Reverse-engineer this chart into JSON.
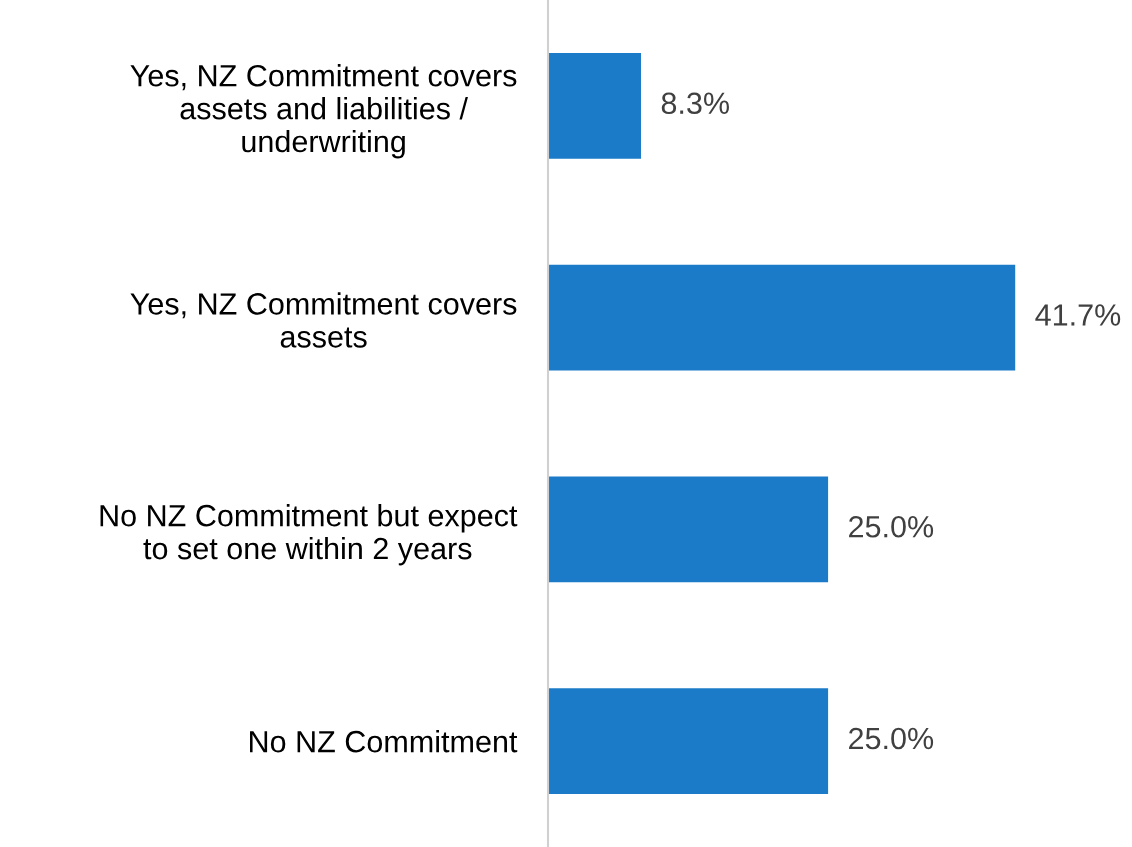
{
  "chart_data": {
    "type": "bar",
    "orientation": "horizontal",
    "categories": [
      "Yes, NZ Commitment covers\nassets and liabilities /\nunderwriting",
      "Yes, NZ Commitment covers\nassets",
      "No NZ Commitment but expect\nto set one within 2 years",
      "No NZ Commitment"
    ],
    "values": [
      8.3,
      41.7,
      25.0,
      25.0
    ],
    "value_labels": [
      "8.3%",
      "41.7%",
      "25.0%",
      "25.0%"
    ],
    "color": "#1b7bc9",
    "grid": false,
    "legend": false
  }
}
